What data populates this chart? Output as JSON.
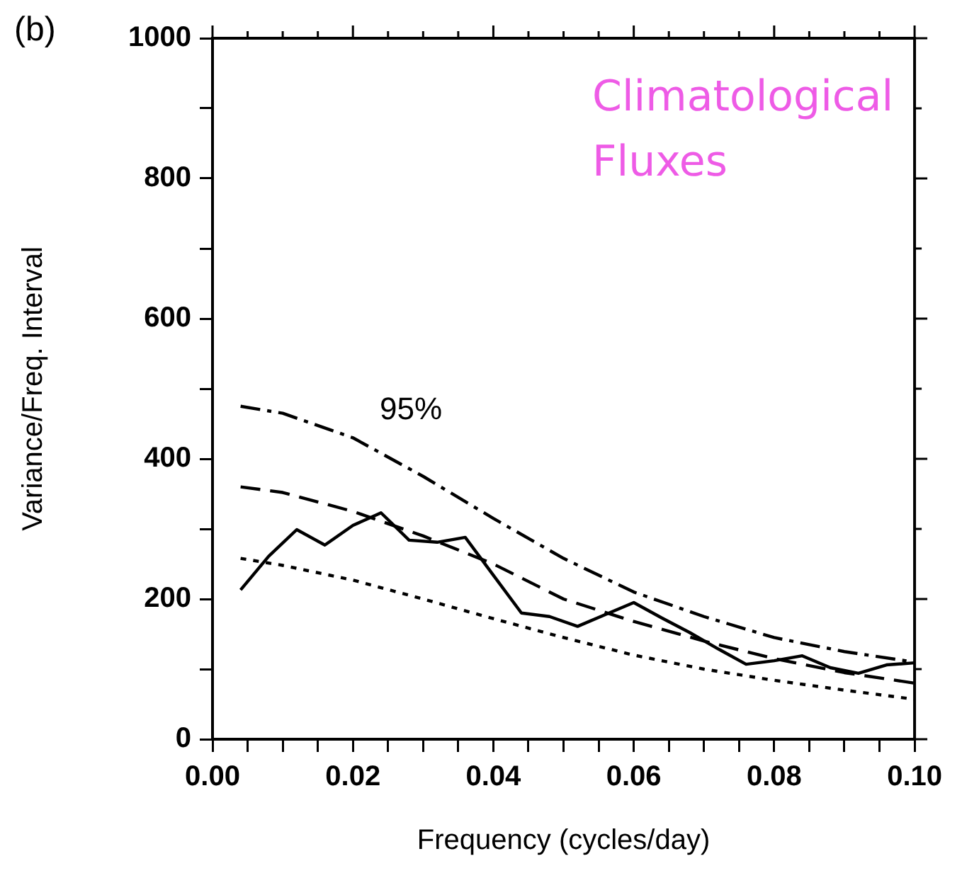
{
  "chart_data": {
    "type": "line",
    "title": "(b)",
    "xlabel": "Frequency (cycles/day)",
    "ylabel": "Variance/Freq. Interval",
    "annotations": [
      "95%",
      "Climatological Fluxes"
    ],
    "xlim": [
      0,
      0.1
    ],
    "ylim": [
      0,
      1000
    ],
    "xticks": [
      {
        "value": 0,
        "label": "0.00"
      },
      {
        "value": 0.005,
        "label": null
      },
      {
        "value": 0.01,
        "label": null
      },
      {
        "value": 0.015,
        "label": null
      },
      {
        "value": 0.02,
        "label": "0.02"
      },
      {
        "value": 0.025,
        "label": null
      },
      {
        "value": 0.03,
        "label": null
      },
      {
        "value": 0.035,
        "label": null
      },
      {
        "value": 0.04,
        "label": "0.04"
      },
      {
        "value": 0.045,
        "label": null
      },
      {
        "value": 0.05,
        "label": null
      },
      {
        "value": 0.055,
        "label": null
      },
      {
        "value": 0.06,
        "label": "0.06"
      },
      {
        "value": 0.065,
        "label": null
      },
      {
        "value": 0.07,
        "label": null
      },
      {
        "value": 0.075,
        "label": null
      },
      {
        "value": 0.08,
        "label": "0.08"
      },
      {
        "value": 0.085,
        "label": null
      },
      {
        "value": 0.09,
        "label": null
      },
      {
        "value": 0.095,
        "label": null
      },
      {
        "value": 0.1,
        "label": "0.10"
      }
    ],
    "yticks": [
      0,
      {
        "value": 100,
        "label": null
      },
      200,
      {
        "value": 300,
        "label": null
      },
      400,
      {
        "value": 500,
        "label": null
      },
      600,
      {
        "value": 700,
        "label": null
      },
      800,
      {
        "value": 900,
        "label": null
      },
      1000
    ],
    "grid": false,
    "legend": false,
    "marker": "none",
    "series": [
      {
        "color": "#000000",
        "line_style": "solid",
        "x": [
          0.004,
          0.008,
          0.012,
          0.016,
          0.02,
          0.024,
          0.028,
          0.032,
          0.036,
          0.04,
          0.044,
          0.048,
          0.052,
          0.056,
          0.06,
          0.064,
          0.068,
          0.072,
          0.076,
          0.08,
          0.084,
          0.088,
          0.092,
          0.096,
          0.1
        ],
        "values": [
          213,
          261,
          299,
          277,
          305,
          323,
          284,
          281,
          288,
          234,
          180,
          175,
          161,
          178,
          195,
          173,
          152,
          129,
          107,
          112,
          119,
          102,
          94,
          106,
          109
        ]
      },
      {
        "color": "#000000",
        "line_style": "dashdot",
        "x": [
          0.004,
          0.01,
          0.02,
          0.03,
          0.04,
          0.05,
          0.06,
          0.07,
          0.08,
          0.09,
          0.1
        ],
        "values": [
          475,
          465,
          430,
          375,
          315,
          258,
          210,
          175,
          145,
          125,
          110
        ]
      },
      {
        "color": "#000000",
        "line_style": "dashed",
        "x": [
          0.004,
          0.01,
          0.02,
          0.03,
          0.04,
          0.05,
          0.06,
          0.07,
          0.08,
          0.09,
          0.1
        ],
        "values": [
          360,
          352,
          325,
          290,
          250,
          200,
          168,
          140,
          115,
          95,
          80
        ]
      },
      {
        "color": "#000000",
        "line_style": "dotted",
        "x": [
          0.004,
          0.01,
          0.02,
          0.03,
          0.04,
          0.05,
          0.06,
          0.07,
          0.08,
          0.09,
          0.1
        ],
        "values": [
          258,
          248,
          227,
          200,
          172,
          145,
          120,
          100,
          84,
          70,
          57
        ]
      }
    ]
  }
}
